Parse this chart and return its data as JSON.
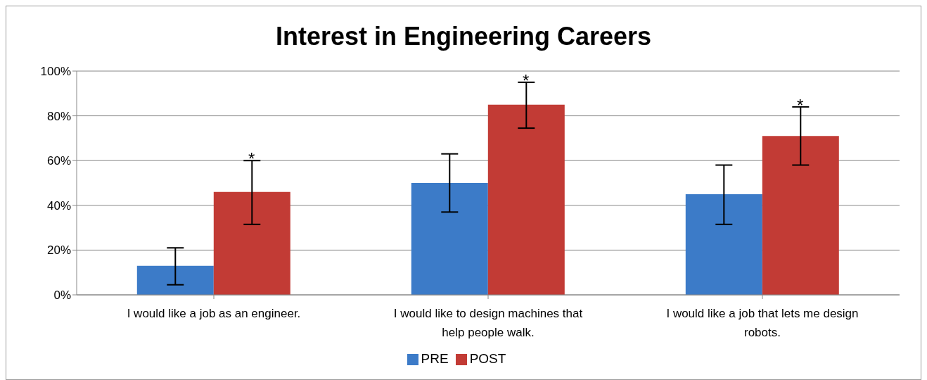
{
  "chart_data": {
    "type": "bar",
    "title": "Interest in Engineering Careers",
    "categories": [
      "I would like a job as an engineer.",
      "I would like to design machines that help people walk.",
      "I would like a job that lets me design robots."
    ],
    "series": [
      {
        "name": "PRE",
        "color": "#3c7bc8",
        "values": [
          13,
          50,
          45
        ],
        "errors": [
          [
            4.5,
            21
          ],
          [
            37,
            63
          ],
          [
            31.5,
            58
          ]
        ]
      },
      {
        "name": "POST",
        "color": "#c23b35",
        "values": [
          46,
          85,
          71
        ],
        "errors": [
          [
            31.5,
            60
          ],
          [
            74.5,
            95
          ],
          [
            58,
            84
          ]
        ]
      }
    ],
    "ylim": [
      0,
      100
    ],
    "yticks": [
      {
        "value": 0,
        "label": "0%"
      },
      {
        "value": 20,
        "label": "20%"
      },
      {
        "value": 40,
        "label": "40%"
      },
      {
        "value": 60,
        "label": "60%"
      },
      {
        "value": 80,
        "label": "80%"
      },
      {
        "value": 100,
        "label": "100%"
      }
    ],
    "grid": "y",
    "legend": "bottom",
    "annotations": [
      "*",
      "*",
      "*"
    ]
  }
}
